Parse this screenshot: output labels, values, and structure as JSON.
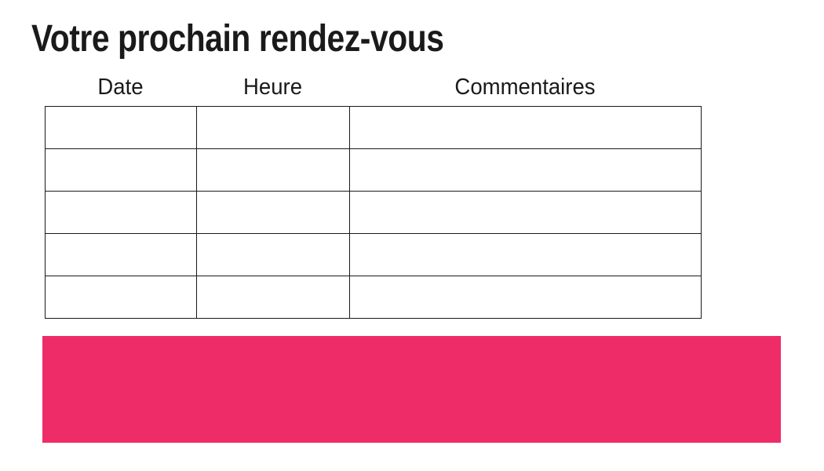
{
  "title": "Votre prochain rendez-vous",
  "table": {
    "headers": [
      "Date",
      "Heure",
      "Commentaires"
    ],
    "rows": [
      {
        "date": "",
        "heure": "",
        "commentaires": ""
      },
      {
        "date": "",
        "heure": "",
        "commentaires": ""
      },
      {
        "date": "",
        "heure": "",
        "commentaires": ""
      },
      {
        "date": "",
        "heure": "",
        "commentaires": ""
      },
      {
        "date": "",
        "heure": "",
        "commentaires": ""
      }
    ]
  },
  "banner": {
    "color": "#ee2d68"
  }
}
